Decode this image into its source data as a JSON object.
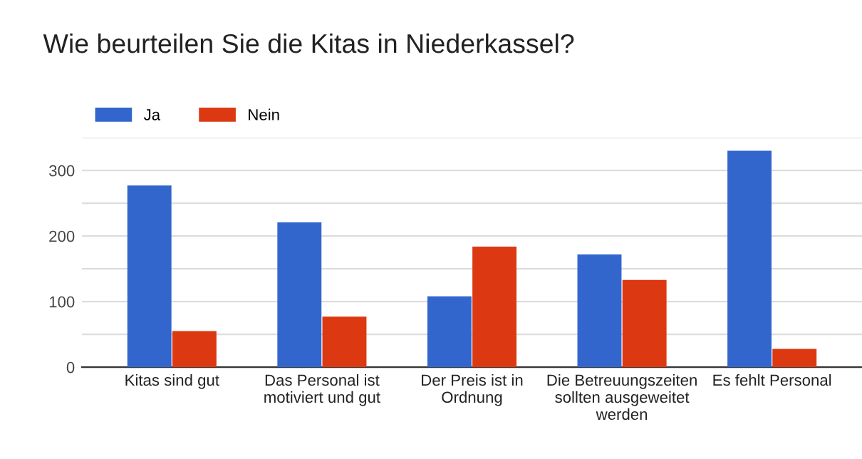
{
  "chart_data": {
    "type": "bar",
    "title": "Wie beurteilen Sie die Kitas in Niederkassel?",
    "categories": [
      "Kitas sind gut",
      "Das Personal ist\nmotiviert und gut",
      "Der Preis ist in\nOrdnung",
      "Die Betreuungszeiten\nsollten ausgeweitet\nwerden",
      "Es fehlt Personal"
    ],
    "series": [
      {
        "name": "Ja",
        "color": "#3366cc",
        "values": [
          277,
          221,
          108,
          172,
          330
        ]
      },
      {
        "name": "Nein",
        "color": "#dc3912",
        "values": [
          55,
          77,
          184,
          133,
          28
        ]
      }
    ],
    "ylim": [
      0,
      350
    ],
    "yticks": [
      0,
      {
        "value": 50,
        "label": null
      },
      100,
      {
        "value": 150,
        "label": null
      },
      200,
      {
        "value": 250,
        "label": null
      },
      300,
      {
        "value": 350,
        "label": null
      }
    ],
    "grid": "y",
    "legend": "top left"
  }
}
